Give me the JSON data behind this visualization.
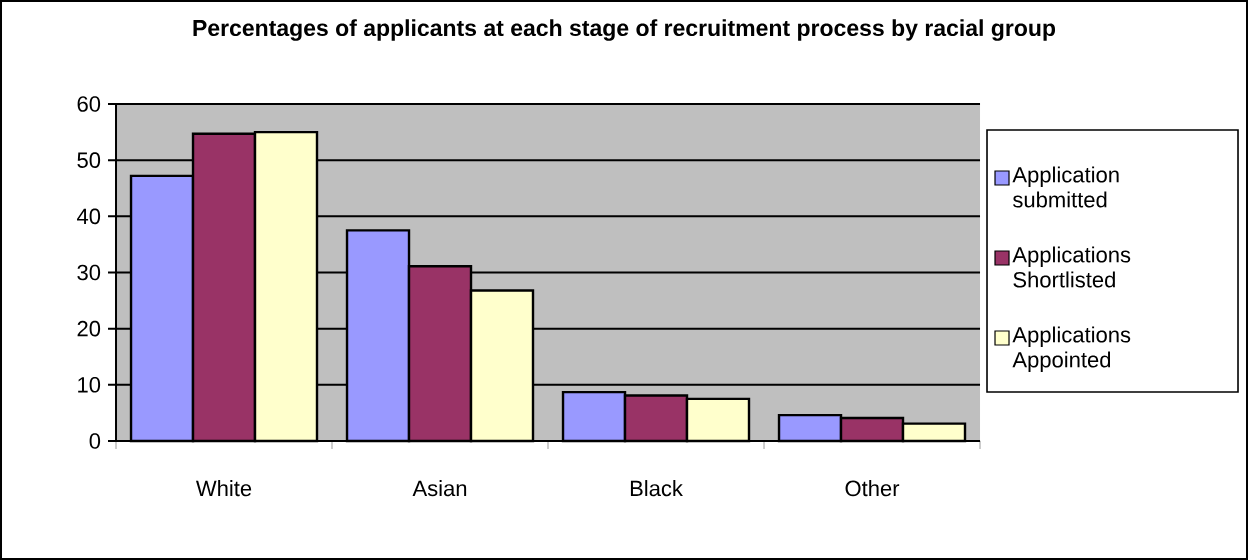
{
  "chart_data": {
    "type": "bar",
    "title": "Percentages of applicants at each stage of recruitment process by racial group",
    "categories": [
      "White",
      "Asian",
      "Black",
      "Other"
    ],
    "series": [
      {
        "name": "Application submitted",
        "color": "#9999ff",
        "values": [
          47.2,
          37.5,
          8.7,
          4.6
        ]
      },
      {
        "name": "Applications Shortlisted",
        "color": "#993366",
        "values": [
          54.7,
          31.1,
          8.1,
          4.1
        ]
      },
      {
        "name": "Applications Appointed",
        "color": "#ffffcc",
        "values": [
          55.0,
          26.8,
          7.5,
          3.1
        ]
      }
    ],
    "ylim": [
      0,
      60
    ],
    "yticks": [
      0,
      10,
      20,
      30,
      40,
      50,
      60
    ],
    "grid": "y",
    "legend": "right"
  }
}
